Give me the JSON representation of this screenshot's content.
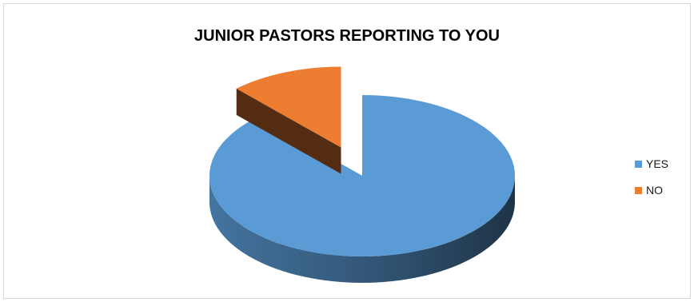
{
  "chart_data": {
    "type": "pie",
    "title": "JUNIOR PASTORS REPORTING TO YOU",
    "categories": [
      "YES",
      "NO"
    ],
    "values": [
      88,
      12
    ],
    "colors": [
      "#5b9bd5",
      "#ed7d31"
    ],
    "exploded": "NO",
    "style": "3d",
    "legend_position": "right"
  }
}
